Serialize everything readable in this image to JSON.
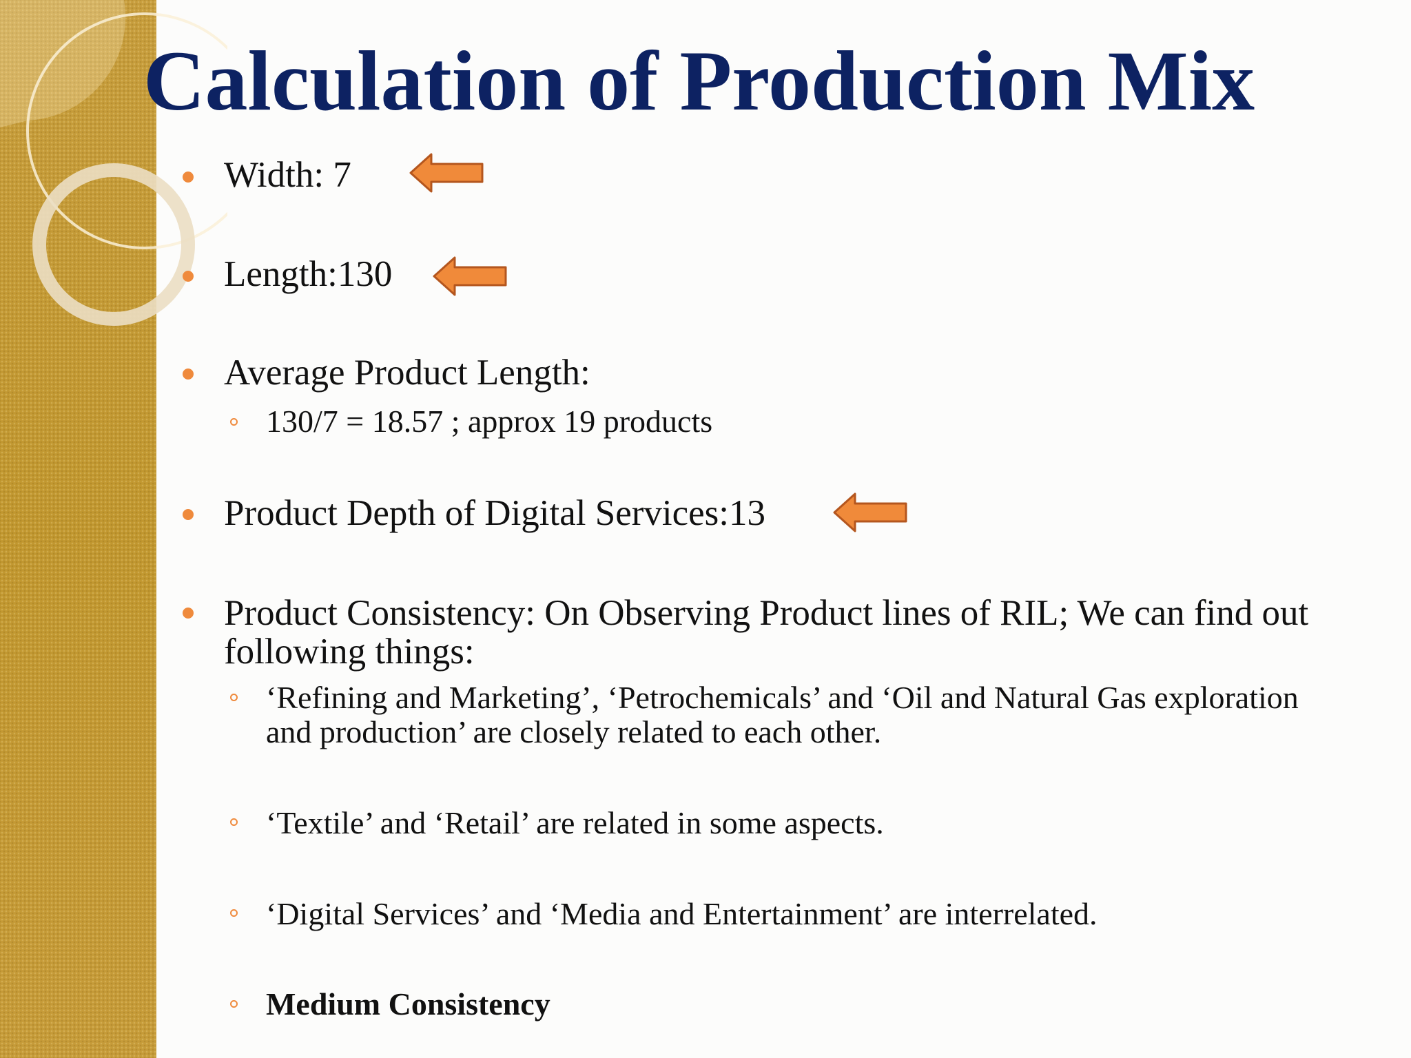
{
  "slide": {
    "title": "Calculation of Production Mix",
    "accent_color": "#ef8a3c",
    "title_color": "#0d2262",
    "sidebar_color": "#c59b3a"
  },
  "items": [
    {
      "text": "Width: 7",
      "arrow": "left-arrow-icon"
    },
    {
      "text": "Length:130",
      "arrow": "left-arrow-icon"
    },
    {
      "text": "Average Product Length:"
    },
    {
      "text": "130/7 = 18.57  ; approx 19 products"
    },
    {
      "text": "Product Depth of Digital Services:13",
      "arrow": "left-arrow-icon"
    },
    {
      "text": "Product Consistency: On Observing Product lines of RIL; We can find out following things:"
    },
    {
      "text": "‘Refining and Marketing’, ‘Petrochemicals’ and ‘Oil and Natural Gas exploration and production’ are closely related to each other."
    },
    {
      "text": "‘Textile’ and ‘Retail’ are related in some aspects."
    },
    {
      "text": "‘Digital Services’ and ‘Media and Entertainment’ are interrelated."
    },
    {
      "text": "Medium Consistency"
    }
  ]
}
